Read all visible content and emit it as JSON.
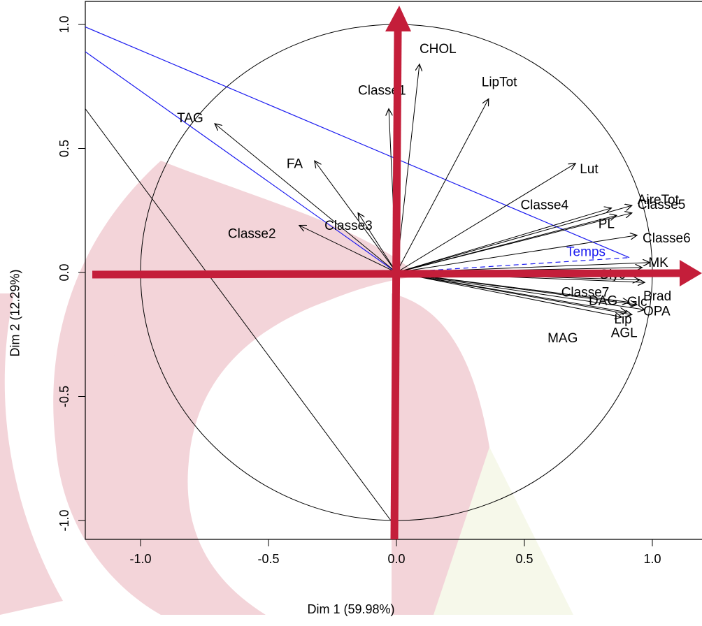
{
  "chart_data": {
    "type": "scatter",
    "subtype": "pca-correlation-circle",
    "xlabel": "Dim 1 (59.98%)",
    "ylabel": "Dim 2 (12.29%)",
    "xlim": [
      -1.18,
      1.18
    ],
    "ylim": [
      -1.08,
      1.08
    ],
    "x_ticks": [
      -1.0,
      -0.5,
      0.0,
      0.5,
      1.0
    ],
    "y_ticks": [
      -1.0,
      -0.5,
      0.0,
      0.5,
      1.0
    ],
    "x_tick_labels": [
      "-1.0",
      "-0.5",
      "0.0",
      "0.5",
      "1.0"
    ],
    "y_tick_labels": [
      "-1.0",
      "-0.5",
      "0.0",
      "0.5",
      "1.0"
    ],
    "unit_circle": true,
    "grid": false,
    "vectors": [
      {
        "name": "CHOL",
        "x": 0.09,
        "y": 0.84
      },
      {
        "name": "Classe1",
        "x": -0.03,
        "y": 0.66
      },
      {
        "name": "LipTot",
        "x": 0.36,
        "y": 0.7
      },
      {
        "name": "TAG",
        "x": -0.71,
        "y": 0.6
      },
      {
        "name": "FA",
        "x": -0.32,
        "y": 0.45
      },
      {
        "name": "Lut",
        "x": 0.7,
        "y": 0.44
      },
      {
        "name": "Classe4",
        "x": 0.84,
        "y": 0.26
      },
      {
        "name": "AireTot",
        "x": 0.92,
        "y": 0.27
      },
      {
        "name": "PL",
        "x": 0.86,
        "y": 0.23
      },
      {
        "name": "Classe5",
        "x": 0.92,
        "y": 0.24
      },
      {
        "name": "Classe3",
        "x": -0.15,
        "y": 0.24
      },
      {
        "name": "Classe2",
        "x": -0.38,
        "y": 0.19
      },
      {
        "name": "Classe6",
        "x": 0.94,
        "y": 0.15
      },
      {
        "name": "MK",
        "x": 0.99,
        "y": 0.04
      },
      {
        "name": "Glyc",
        "x": 0.96,
        "y": 0.02
      },
      {
        "name": "Classe7",
        "x": 0.95,
        "y": -0.03
      },
      {
        "name": "Brad",
        "x": 0.97,
        "y": -0.04
      },
      {
        "name": "DAG",
        "x": 0.91,
        "y": -0.12
      },
      {
        "name": "Glc",
        "x": 0.94,
        "y": -0.13
      },
      {
        "name": "OPA",
        "x": 0.97,
        "y": -0.15
      },
      {
        "name": "Lip",
        "x": 0.9,
        "y": -0.16
      },
      {
        "name": "AGL",
        "x": 0.92,
        "y": -0.17
      },
      {
        "name": "MAG",
        "x": 0.88,
        "y": -0.18
      }
    ],
    "supplementary": {
      "name": "Temps",
      "x": 0.91,
      "y": 0.06,
      "color": "#1a1af0"
    }
  },
  "colors": {
    "axis_arrow": "#c41e3a",
    "blue_line": "#1a1af0",
    "watermark": "#f3d4d9",
    "watermark_green": "#f6f8ea"
  }
}
